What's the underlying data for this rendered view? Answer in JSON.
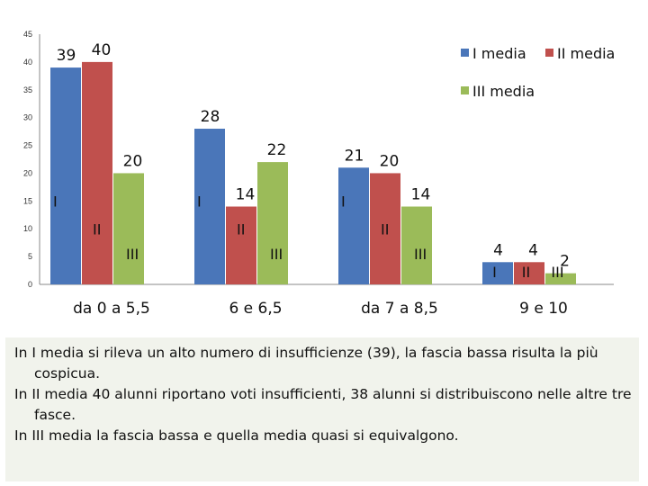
{
  "chart_data": {
    "type": "bar",
    "categories": [
      "da 0 a 5,5",
      "6 e 6,5",
      "da 7 a 8,5",
      "9 e 10"
    ],
    "series": [
      {
        "name": "I media",
        "values": [
          39,
          28,
          21,
          4
        ],
        "mark": "I",
        "color": "#4a76b9"
      },
      {
        "name": "II media",
        "values": [
          40,
          14,
          20,
          4
        ],
        "mark": "II",
        "color": "#c0504d"
      },
      {
        "name": "III media",
        "values": [
          20,
          22,
          14,
          2
        ],
        "mark": "III",
        "color": "#9bbb59"
      }
    ],
    "ylim": [
      0,
      45
    ],
    "yticks": [
      0,
      5,
      10,
      15,
      20,
      25,
      30,
      35,
      40,
      45
    ],
    "grid": false,
    "legend": "top-right"
  },
  "note": {
    "lines": [
      "In I media si rileva un alto numero di insufficienze (39), la fascia bassa risulta la più cospicua.",
      "In II media 40 alunni riportano voti insufficienti, 38 alunni si distribuiscono nelle altre tre fasce.",
      "In III media la fascia bassa e quella media quasi si equivalgono."
    ]
  }
}
